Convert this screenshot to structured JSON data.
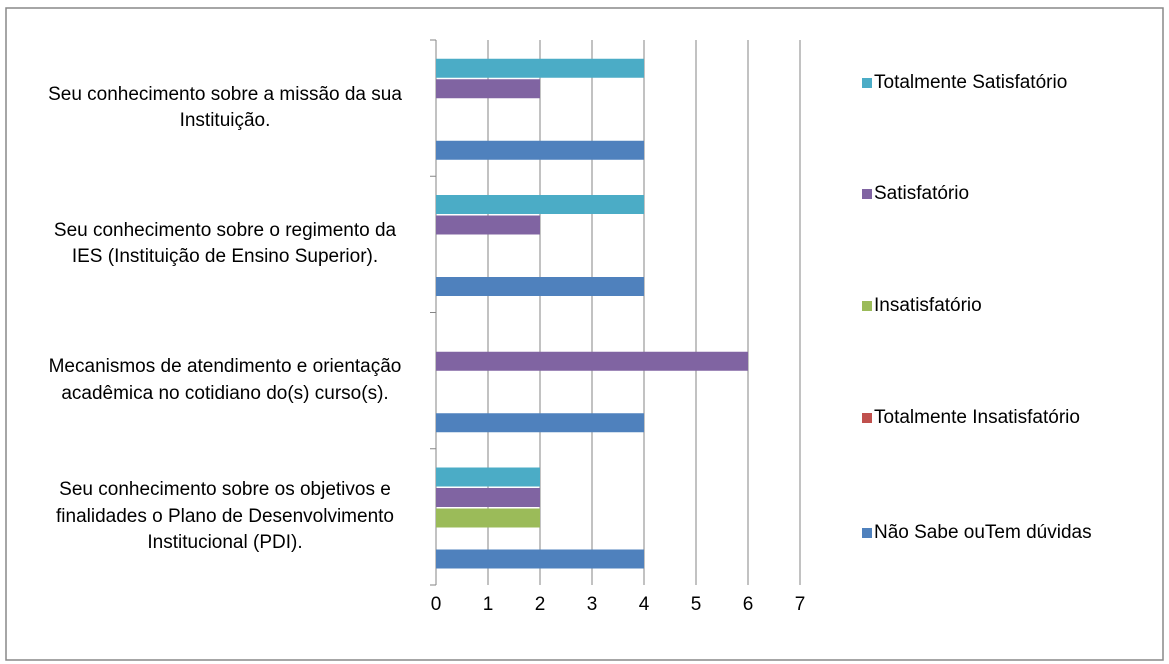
{
  "chart_data": {
    "type": "barh",
    "categories": [
      "Seu conhecimento sobre a missão da sua Instituição.",
      "Seu conhecimento sobre o regimento da IES (Instituição de Ensino Superior).",
      "Mecanismos de atendimento e orientação acadêmica no cotidiano do(s) curso(s).",
      "Seu conhecimento sobre os objetivos e finalidades o Plano de Desenvolvimento Institucional (PDI)."
    ],
    "series": [
      {
        "name": "Não Sabe ouTem dúvidas",
        "color": "#4f81bd",
        "values": [
          4,
          4,
          4,
          4
        ]
      },
      {
        "name": "Totalmente Insatisfatório",
        "color": "#c0504d",
        "values": [
          0,
          0,
          0,
          0
        ]
      },
      {
        "name": "Insatisfatório",
        "color": "#9bbb59",
        "values": [
          0,
          0,
          0,
          2
        ]
      },
      {
        "name": "Satisfatório",
        "color": "#8064a2",
        "values": [
          2,
          2,
          6,
          2
        ]
      },
      {
        "name": "Totalmente Satisfatório",
        "color": "#4bacc6",
        "values": [
          4,
          4,
          0,
          2
        ]
      }
    ],
    "xlim": [
      0,
      7
    ],
    "xticks": [
      0,
      1,
      2,
      3,
      4,
      5,
      6,
      7
    ],
    "grid": true,
    "legend": "right"
  }
}
